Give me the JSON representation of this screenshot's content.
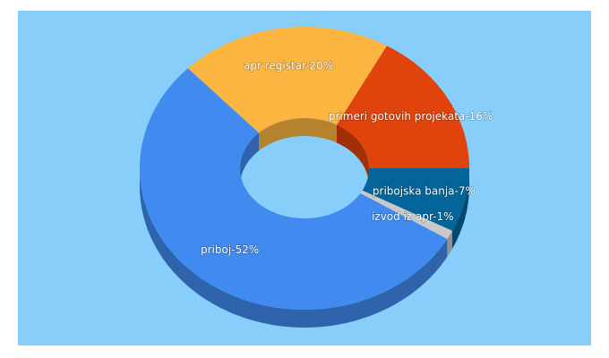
{
  "chart_data": {
    "type": "donut3d",
    "values": [
      7,
      1,
      52,
      20,
      16
    ],
    "value_labels": [
      "pribojska banja-7%",
      "izvod iz apr-1%",
      "priboj-52%",
      "apr registar-20%",
      "primeri gotovih projekata-16%"
    ],
    "colors": [
      "#03659a",
      "#c9c9c9",
      "#418bf0",
      "#fbb540",
      "#e0430c"
    ]
  }
}
